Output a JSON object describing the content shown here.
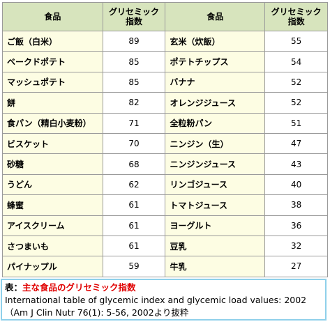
{
  "table": {
    "headers": [
      "食品",
      "グリセミック\n指数",
      "食品",
      "グリセミック\n指数"
    ],
    "rows": [
      [
        "ご飯（白米）",
        89,
        "玄米（炊飯）",
        55
      ],
      [
        "ベークドポテト",
        85,
        "ポテトチップス",
        54
      ],
      [
        "マッシュポテト",
        85,
        "バナナ",
        52
      ],
      [
        "餅",
        82,
        "オレンジジュース",
        52
      ],
      [
        "食パン（精白小麦粉）",
        71,
        "全粒粉パン",
        51
      ],
      [
        "ビスケット",
        70,
        "ニンジン（生）",
        47
      ],
      [
        "砂糖",
        68,
        "ニンジンジュース",
        43
      ],
      [
        "うどん",
        62,
        "リンゴジュース",
        40
      ],
      [
        "蜂蜜",
        61,
        "トマトジュース",
        38
      ],
      [
        "アイスクリーム",
        61,
        "ヨーグルト",
        36
      ],
      [
        "さつまいも",
        61,
        "豆乳",
        32
      ],
      [
        "パイナップル",
        59,
        "牛乳",
        27
      ]
    ]
  },
  "caption": {
    "label": "表：",
    "title": "主な食品のグリセミック指数",
    "source": [
      "International table of glycemic index and glycemic load values: 2002",
      "（Am J Clin Nutr 76(1): 5-56, 2002より抜粋"
    ]
  }
}
